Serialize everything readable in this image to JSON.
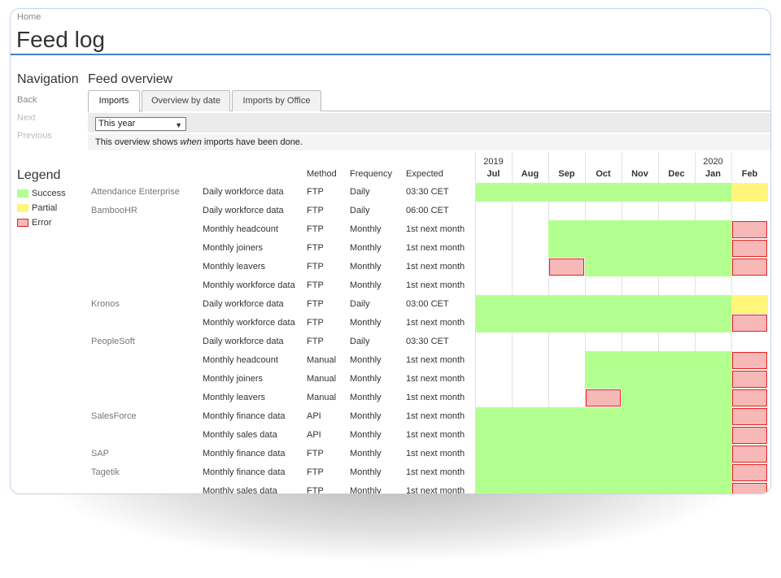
{
  "breadcrumb": "Home",
  "page_title": "Feed log",
  "navigation": {
    "heading": "Navigation",
    "links": [
      {
        "label": "Back",
        "enabled": true
      },
      {
        "label": "Next",
        "enabled": false
      },
      {
        "label": "Previous",
        "enabled": false
      }
    ]
  },
  "legend": {
    "heading": "Legend",
    "items": [
      {
        "label": "Success",
        "color": "#b3ff8f"
      },
      {
        "label": "Partial",
        "color": "#fff67a"
      },
      {
        "label": "Error",
        "color": "#f7b8b8"
      }
    ]
  },
  "overview": {
    "heading": "Feed overview",
    "tabs": [
      "Imports",
      "Overview by date",
      "Imports by Office"
    ],
    "active_tab": "Imports",
    "filter_value": "This year",
    "info_prefix": "This overview shows ",
    "info_em": "when",
    "info_suffix": " imports have been done."
  },
  "columns": {
    "method": "Method",
    "frequency": "Frequency",
    "expected": "Expected"
  },
  "months": [
    {
      "year": "2019",
      "label": "Jul"
    },
    {
      "year": "",
      "label": "Aug"
    },
    {
      "year": "",
      "label": "Sep"
    },
    {
      "year": "",
      "label": "Oct"
    },
    {
      "year": "",
      "label": "Nov"
    },
    {
      "year": "",
      "label": "Dec"
    },
    {
      "year": "2020",
      "label": "Jan"
    },
    {
      "year": "",
      "label": "Feb"
    }
  ],
  "rows": [
    {
      "source": "Attendance Enterprise",
      "feed": "Daily workforce data",
      "method": "FTP",
      "frequency": "Daily",
      "expected": "03:30 CET",
      "status": [
        "g",
        "g",
        "g",
        "g",
        "g",
        "g",
        "g",
        "y"
      ]
    },
    {
      "source": "BambooHR",
      "feed": "Daily workforce data",
      "method": "FTP",
      "frequency": "Daily",
      "expected": "06:00 CET",
      "status": [
        "",
        "",
        "",
        "",
        "",
        "",
        "",
        ""
      ]
    },
    {
      "source": "",
      "feed": "Monthly headcount",
      "method": "FTP",
      "frequency": "Monthly",
      "expected": "1st next month",
      "status": [
        "",
        "",
        "g",
        "g",
        "g",
        "g",
        "g",
        "r"
      ]
    },
    {
      "source": "",
      "feed": "Monthly joiners",
      "method": "FTP",
      "frequency": "Monthly",
      "expected": "1st next month",
      "status": [
        "",
        "",
        "g",
        "g",
        "g",
        "g",
        "g",
        "r"
      ]
    },
    {
      "source": "",
      "feed": "Monthly leavers",
      "method": "FTP",
      "frequency": "Monthly",
      "expected": "1st next month",
      "status": [
        "",
        "",
        "r",
        "g",
        "g",
        "g",
        "g",
        "r"
      ]
    },
    {
      "source": "",
      "feed": "Monthly workforce data",
      "method": "FTP",
      "frequency": "Monthly",
      "expected": "1st next month",
      "status": [
        "",
        "",
        "",
        "",
        "",
        "",
        "",
        ""
      ]
    },
    {
      "source": "Kronos",
      "feed": "Daily workforce data",
      "method": "FTP",
      "frequency": "Daily",
      "expected": "03:00 CET",
      "status": [
        "g",
        "g",
        "g",
        "g",
        "g",
        "g",
        "g",
        "y"
      ]
    },
    {
      "source": "",
      "feed": "Monthly workforce data",
      "method": "FTP",
      "frequency": "Monthly",
      "expected": "1st next month",
      "status": [
        "g",
        "g",
        "g",
        "g",
        "g",
        "g",
        "g",
        "r"
      ]
    },
    {
      "source": "PeopleSoft",
      "feed": "Daily workforce data",
      "method": "FTP",
      "frequency": "Daily",
      "expected": "03:30 CET",
      "status": [
        "",
        "",
        "",
        "",
        "",
        "",
        "",
        ""
      ]
    },
    {
      "source": "",
      "feed": "Monthly headcount",
      "method": "Manual",
      "frequency": "Monthly",
      "expected": "1st next month",
      "status": [
        "",
        "",
        "",
        "g",
        "g",
        "g",
        "g",
        "r"
      ]
    },
    {
      "source": "",
      "feed": "Monthly joiners",
      "method": "Manual",
      "frequency": "Monthly",
      "expected": "1st next month",
      "status": [
        "",
        "",
        "",
        "g",
        "g",
        "g",
        "g",
        "r"
      ]
    },
    {
      "source": "",
      "feed": "Monthly leavers",
      "method": "Manual",
      "frequency": "Monthly",
      "expected": "1st next month",
      "status": [
        "",
        "",
        "",
        "r",
        "g",
        "g",
        "g",
        "r"
      ]
    },
    {
      "source": "SalesForce",
      "feed": "Monthly finance data",
      "method": "API",
      "frequency": "Monthly",
      "expected": "1st next month",
      "status": [
        "g",
        "g",
        "g",
        "g",
        "g",
        "g",
        "g",
        "r"
      ]
    },
    {
      "source": "",
      "feed": "Monthly sales data",
      "method": "API",
      "frequency": "Monthly",
      "expected": "1st next month",
      "status": [
        "g",
        "g",
        "g",
        "g",
        "g",
        "g",
        "g",
        "r"
      ]
    },
    {
      "source": "SAP",
      "feed": "Monthly finance data",
      "method": "FTP",
      "frequency": "Monthly",
      "expected": "1st next month",
      "status": [
        "g",
        "g",
        "g",
        "g",
        "g",
        "g",
        "g",
        "r"
      ]
    },
    {
      "source": "Tagetik",
      "feed": "Monthly finance data",
      "method": "FTP",
      "frequency": "Monthly",
      "expected": "1st next month",
      "status": [
        "g",
        "g",
        "g",
        "g",
        "g",
        "g",
        "g",
        "r"
      ]
    },
    {
      "source": "",
      "feed": "Monthly sales data",
      "method": "FTP",
      "frequency": "Monthly",
      "expected": "1st next month",
      "status": [
        "g",
        "g",
        "g",
        "g",
        "g",
        "g",
        "g",
        "r"
      ]
    }
  ]
}
